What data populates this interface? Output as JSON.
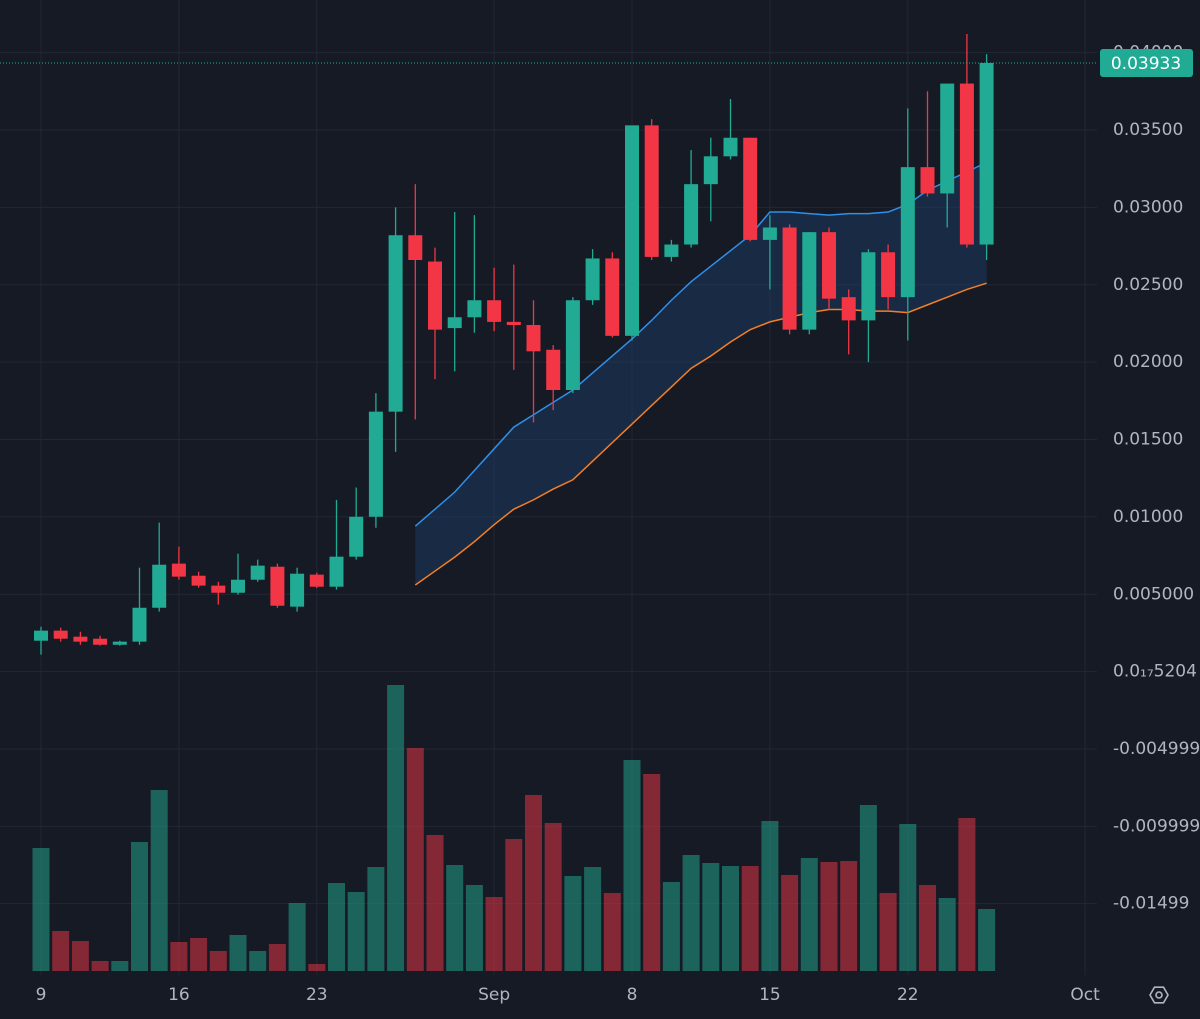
{
  "chart_data": {
    "type": "candlestick",
    "categories": [
      "9",
      null,
      null,
      null,
      null,
      null,
      null,
      "16",
      null,
      null,
      null,
      null,
      null,
      null,
      "23",
      null,
      null,
      null,
      null,
      null,
      null,
      null,
      null,
      "Sep",
      null,
      null,
      null,
      null,
      null,
      null,
      "8",
      null,
      null,
      null,
      null,
      null,
      null,
      "15",
      null,
      null,
      null,
      null,
      null,
      null,
      "22",
      null,
      null,
      null,
      null,
      null,
      null,
      null,
      null,
      "Oct"
    ],
    "open": [
      0.002,
      0.00265,
      0.00226,
      0.00213,
      0.00174,
      0.00194,
      0.00413,
      0.00698,
      0.0062,
      0.00556,
      0.0051,
      0.00594,
      0.00678,
      0.0042,
      0.00627,
      0.00549,
      0.00743,
      0.01001,
      0.0168,
      0.0282,
      0.0265,
      0.0222,
      0.0229,
      0.024,
      0.0226,
      0.0224,
      0.0208,
      0.0182,
      0.024,
      0.0267,
      0.0217,
      0.0353,
      0.0268,
      0.0276,
      0.0315,
      0.0333,
      0.0345,
      0.0279,
      0.0287,
      0.0221,
      0.0284,
      0.0242,
      0.0227,
      0.0271,
      0.0242,
      0.0326,
      0.0309,
      0.038,
      0.0276,
      null,
      null,
      null,
      null,
      null
    ],
    "high": [
      0.0029,
      0.00284,
      0.00258,
      0.00232,
      0.002,
      0.00672,
      0.00963,
      0.00808,
      0.00646,
      0.00581,
      0.00762,
      0.00724,
      0.00698,
      0.00672,
      0.0064,
      0.0111,
      0.0119,
      0.018,
      0.03,
      0.0315,
      0.0274,
      0.0297,
      0.0295,
      0.0261,
      0.0263,
      0.024,
      0.0211,
      0.0242,
      0.0273,
      0.0271,
      0.0353,
      0.0357,
      0.0279,
      0.0337,
      0.0345,
      0.037,
      0.0345,
      0.0295,
      0.0289,
      0.0284,
      0.0287,
      0.0247,
      0.0273,
      0.0276,
      0.0364,
      0.0375,
      0.038,
      0.0412,
      0.0399,
      null,
      null,
      null,
      null,
      null
    ],
    "low": [
      0.0011,
      0.00194,
      0.00174,
      0.00168,
      0.00168,
      0.00174,
      0.00388,
      0.00594,
      0.00543,
      0.00433,
      0.00497,
      0.00581,
      0.00413,
      0.00388,
      0.0054,
      0.0053,
      0.00724,
      0.0093,
      0.0142,
      0.0163,
      0.0189,
      0.0194,
      0.0219,
      0.022,
      0.0195,
      0.0161,
      0.0169,
      0.018,
      0.0237,
      0.0216,
      0.0214,
      0.0266,
      0.0265,
      0.0274,
      0.0291,
      0.0331,
      0.0278,
      0.0247,
      0.0218,
      0.0218,
      0.0234,
      0.0205,
      0.02,
      0.0234,
      0.0214,
      0.0307,
      0.0287,
      0.0274,
      0.0266,
      null,
      null,
      null,
      null,
      null
    ],
    "close": [
      0.00265,
      0.00213,
      0.00194,
      0.00174,
      0.00194,
      0.00413,
      0.00691,
      0.00614,
      0.00556,
      0.0051,
      0.00594,
      0.00685,
      0.00426,
      0.00633,
      0.00549,
      0.00743,
      0.01001,
      0.0168,
      0.0282,
      0.0266,
      0.0221,
      0.0229,
      0.024,
      0.0226,
      0.0224,
      0.0207,
      0.0182,
      0.024,
      0.0267,
      0.0217,
      0.0353,
      0.0268,
      0.0276,
      0.0315,
      0.0333,
      0.0345,
      0.0279,
      0.0287,
      0.0221,
      0.0284,
      0.0241,
      0.0227,
      0.0271,
      0.0242,
      0.0326,
      0.0309,
      0.038,
      0.0276,
      0.03933,
      null,
      null,
      null,
      null,
      null
    ],
    "volume": [
      123,
      40,
      30,
      10,
      10,
      129,
      181,
      29,
      33,
      20,
      36,
      20,
      27,
      68,
      7,
      88,
      79,
      104,
      286,
      223,
      136,
      106,
      86,
      74,
      132,
      176,
      148,
      95,
      104,
      78,
      211,
      197,
      89,
      116,
      108,
      105,
      105,
      150,
      96,
      113,
      109,
      110,
      166,
      78,
      147,
      86,
      73,
      153,
      62,
      null,
      null,
      null,
      null,
      null
    ],
    "up_color": "#22ab94",
    "down_color": "#f23645",
    "bands": [
      {
        "color": "#2f8fea",
        "values": [
          null,
          null,
          null,
          null,
          null,
          null,
          null,
          null,
          null,
          null,
          null,
          null,
          null,
          null,
          null,
          null,
          null,
          null,
          null,
          0.0094,
          0.0105,
          0.0116,
          0.013,
          0.0144,
          0.0158,
          0.0166,
          0.0174,
          0.0182,
          0.0193,
          0.0204,
          0.0215,
          0.0227,
          0.024,
          0.0252,
          0.0262,
          0.0272,
          0.0282,
          0.0297,
          0.0297,
          0.0296,
          0.0295,
          0.0296,
          0.0296,
          0.0297,
          0.0302,
          0.0311,
          0.0317,
          0.0323,
          0.0329,
          null,
          null,
          null,
          null,
          null
        ]
      },
      {
        "color": "#f57f25",
        "values": [
          null,
          null,
          null,
          null,
          null,
          null,
          null,
          null,
          null,
          null,
          null,
          null,
          null,
          null,
          null,
          null,
          null,
          null,
          null,
          0.0056,
          0.0065,
          0.0074,
          0.0084,
          0.0095,
          0.0105,
          0.0111,
          0.0118,
          0.0124,
          0.0136,
          0.0148,
          0.016,
          0.0172,
          0.0184,
          0.0196,
          0.0204,
          0.0213,
          0.0221,
          0.0226,
          0.0229,
          0.0232,
          0.0234,
          0.0234,
          0.0233,
          0.0233,
          0.0232,
          0.0237,
          0.0242,
          0.0247,
          0.0251,
          null,
          null,
          null,
          null,
          null
        ]
      }
    ],
    "band_fill": "#1e3a5f",
    "ylim": [
      -0.0196,
      0.0434
    ],
    "yticks": [
      {
        "value": 0.04,
        "label": "0.04000"
      },
      {
        "value": 0.035,
        "label": "0.03500"
      },
      {
        "value": 0.03,
        "label": "0.03000"
      },
      {
        "value": 0.025,
        "label": "0.02500"
      },
      {
        "value": 0.02,
        "label": "0.02000"
      },
      {
        "value": 0.015,
        "label": "0.01500"
      },
      {
        "value": 0.01,
        "label": "0.01000"
      },
      {
        "value": 0.005,
        "label": "0.005000"
      },
      {
        "value": 5.204e-18,
        "label": "0.0₁₇5204"
      },
      -0.004999,
      -0.009999,
      -0.01499
    ],
    "last_price": 0.03933,
    "grid": true
  }
}
